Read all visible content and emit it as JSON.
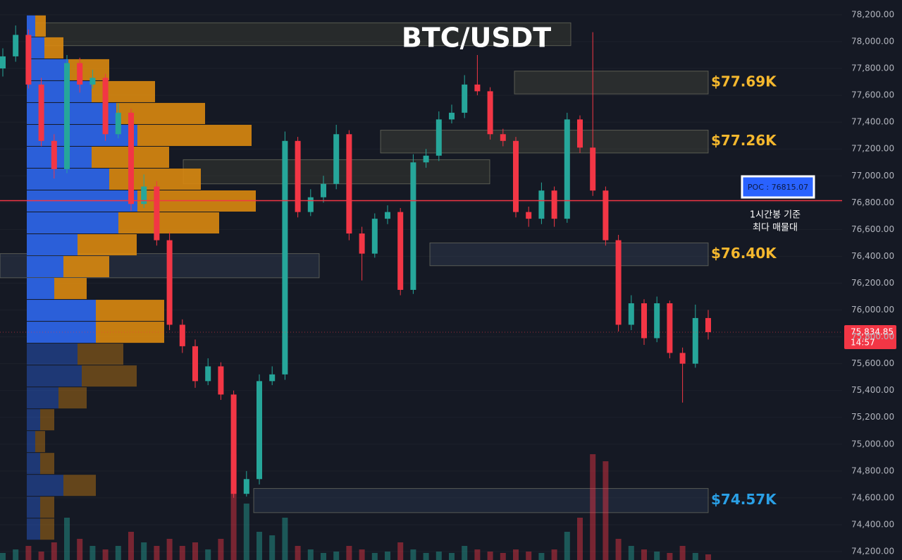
{
  "chart_data": {
    "type": "candlestick",
    "title": "BTC/USDT",
    "ylim": [
      74137,
      78310
    ],
    "yticks": [
      {
        "value": 74200,
        "label": "74,200.00"
      },
      {
        "value": 74400,
        "label": "74,400.00"
      },
      {
        "value": 74600,
        "label": "74,600.00"
      },
      {
        "value": 74800,
        "label": "74,800.00"
      },
      {
        "value": 75000,
        "label": "75,000.00"
      },
      {
        "value": 75200,
        "label": "75,200.00"
      },
      {
        "value": 75400,
        "label": "75,400.00"
      },
      {
        "value": 75600,
        "label": "75,600.00"
      },
      {
        "value": 75800,
        "label": "75,800.00"
      },
      {
        "value": 76000,
        "label": "76,000.00"
      },
      {
        "value": 76200,
        "label": "76,200.00"
      },
      {
        "value": 76400,
        "label": "76,400.00"
      },
      {
        "value": 76600,
        "label": "76,600.00"
      },
      {
        "value": 76800,
        "label": "76,800.00"
      },
      {
        "value": 77000,
        "label": "77,000.00"
      },
      {
        "value": 77200,
        "label": "77,200.00"
      },
      {
        "value": 77400,
        "label": "77,400.00"
      },
      {
        "value": 77600,
        "label": "77,600.00"
      },
      {
        "value": 77800,
        "label": "77,800.00"
      },
      {
        "value": 78000,
        "label": "78,000.00"
      },
      {
        "value": 78200,
        "label": "78,200.00"
      }
    ],
    "up_color": "#26a69a",
    "down_color": "#f23645",
    "open": [
      77800,
      77890,
      78050,
      77680,
      77260,
      77050,
      77840,
      77680,
      77730,
      77310,
      77470,
      76790,
      76920,
      76520,
      75890,
      75730,
      75470,
      75580,
      75370,
      74630,
      74740,
      75470,
      75520,
      77260,
      76730,
      76840,
      76940,
      77310,
      76570,
      76420,
      76680,
      76730,
      76150,
      77100,
      77150,
      77420,
      77470,
      77680,
      77630,
      77310,
      77260,
      76730,
      76680,
      76890,
      76680,
      77420,
      77210,
      76890,
      76520,
      75890,
      76050,
      75790,
      76050,
      75680,
      75600,
      75940
    ],
    "high": [
      77950,
      78120,
      78090,
      77730,
      77310,
      77900,
      77880,
      77790,
      77760,
      77540,
      77500,
      77010,
      76960,
      76580,
      75930,
      75780,
      75640,
      75610,
      75400,
      74800,
      75520,
      75580,
      77330,
      77290,
      76900,
      77000,
      77380,
      77340,
      76620,
      76720,
      76780,
      76760,
      77160,
      77200,
      77480,
      77530,
      77750,
      77900,
      77660,
      77350,
      77290,
      76770,
      76950,
      76920,
      77470,
      77450,
      78070,
      76920,
      76560,
      76110,
      76080,
      76100,
      76070,
      75720,
      76040,
      76000
    ],
    "low": [
      77740,
      77850,
      77650,
      77220,
      76980,
      77020,
      77620,
      77650,
      77260,
      77280,
      76740,
      76760,
      76480,
      75850,
      75680,
      75420,
      75440,
      75330,
      74600,
      74610,
      74700,
      75440,
      75480,
      76690,
      76700,
      76800,
      76900,
      76520,
      76220,
      76390,
      76640,
      76110,
      76120,
      77060,
      77110,
      77390,
      77430,
      77600,
      77270,
      77220,
      76690,
      76620,
      76640,
      76620,
      76650,
      77170,
      76850,
      76480,
      75840,
      75850,
      75740,
      75760,
      75640,
      75310,
      75570,
      75780
    ],
    "close": [
      77890,
      78050,
      77680,
      77260,
      77050,
      77840,
      77680,
      77730,
      77310,
      77470,
      76790,
      76920,
      76520,
      75890,
      75730,
      75470,
      75580,
      75370,
      74630,
      74740,
      75470,
      75520,
      77260,
      76730,
      76840,
      76940,
      77310,
      76570,
      76420,
      76680,
      76730,
      76150,
      77100,
      77150,
      77420,
      77470,
      77680,
      77630,
      77310,
      77260,
      76730,
      76680,
      76890,
      76680,
      77420,
      77210,
      76890,
      76520,
      75890,
      76050,
      75790,
      76050,
      75680,
      75600,
      75940,
      75834.85
    ],
    "volume": [
      10,
      15,
      20,
      12,
      25,
      60,
      30,
      20,
      15,
      20,
      40,
      25,
      20,
      30,
      20,
      25,
      15,
      30,
      150,
      80,
      40,
      35,
      60,
      20,
      15,
      10,
      12,
      20,
      15,
      10,
      12,
      25,
      15,
      10,
      12,
      10,
      20,
      15,
      12,
      10,
      15,
      12,
      10,
      15,
      40,
      60,
      150,
      140,
      30,
      20,
      15,
      12,
      10,
      20,
      10,
      8
    ],
    "profile": {
      "edges": [
        78195,
        78032,
        77869,
        77706,
        77543,
        77380,
        77217,
        77054,
        76891,
        76728,
        76565,
        76402,
        76239,
        76076,
        75913,
        75750,
        75587,
        75424,
        75261,
        75098,
        74935,
        74772,
        74609,
        74446,
        74283
      ],
      "buy": [
        12,
        25,
        59,
        92,
        127,
        157,
        92,
        117,
        157,
        130,
        72,
        52,
        39,
        98,
        98,
        72,
        78,
        45,
        19,
        12,
        19,
        52,
        19,
        19
      ],
      "sell": [
        15,
        27,
        58,
        90,
        126,
        162,
        110,
        130,
        168,
        143,
        84,
        65,
        46,
        97,
        97,
        65,
        78,
        40,
        20,
        14,
        20,
        46,
        20,
        20
      ],
      "buy_color": "#2b5fd9",
      "sell_color": "#d9880f"
    },
    "zones": [
      {
        "low": 77610,
        "high": 77780,
        "label": "$77.69K",
        "color": "#f5b82e"
      },
      {
        "low": 77170,
        "high": 77340,
        "label": "$77.26K",
        "color": "#f5b82e"
      },
      {
        "low": 76330,
        "high": 76500,
        "label": "$76.40K",
        "color": "#f5b82e"
      },
      {
        "low": 74490,
        "high": 74670,
        "label": "$74.57K",
        "color": "#2aa0e6"
      },
      {
        "low": 77970,
        "high": 78140
      },
      {
        "low": 76940,
        "high": 77120
      },
      {
        "low": 76240,
        "high": 76420
      }
    ],
    "poc": {
      "value": 76815.07,
      "label": "POC : 76815.07",
      "color": "#f23645"
    },
    "note": [
      "1시간봉 기준",
      "최다 매물대"
    ],
    "last_price": {
      "value": 75834.85,
      "label": "75,834.85"
    },
    "countdown": "14:57"
  }
}
